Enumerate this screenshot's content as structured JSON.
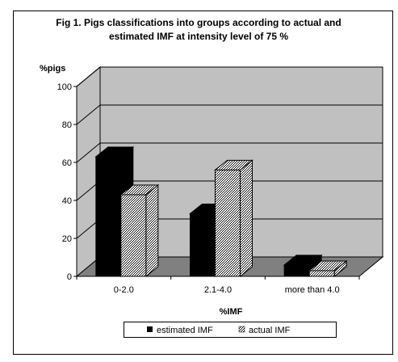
{
  "chart_data": {
    "type": "bar",
    "title_line1": "Fig 1. Pigs classifications into groups according to actual and",
    "title_line2": "estimated IMF at intensity level of 75 %",
    "ylabel": "%pigs",
    "xlabel": "%IMF",
    "categories": [
      "0-2.0",
      "2.1-4.0",
      "more than 4.0"
    ],
    "series": [
      {
        "name": "estimated IMF",
        "values": [
          63,
          33,
          6
        ],
        "fill": "#000000"
      },
      {
        "name": "actual IMF",
        "values": [
          43,
          56,
          3
        ],
        "fill": "hatch"
      }
    ],
    "ylim": [
      0,
      100
    ],
    "yticks": [
      "0",
      "20",
      "40",
      "60",
      "80",
      "100"
    ],
    "legend_position": "bottom",
    "grid": true,
    "colors": {
      "wall": "#c0c0c0",
      "floor": "#808080",
      "border": "#000000"
    }
  }
}
